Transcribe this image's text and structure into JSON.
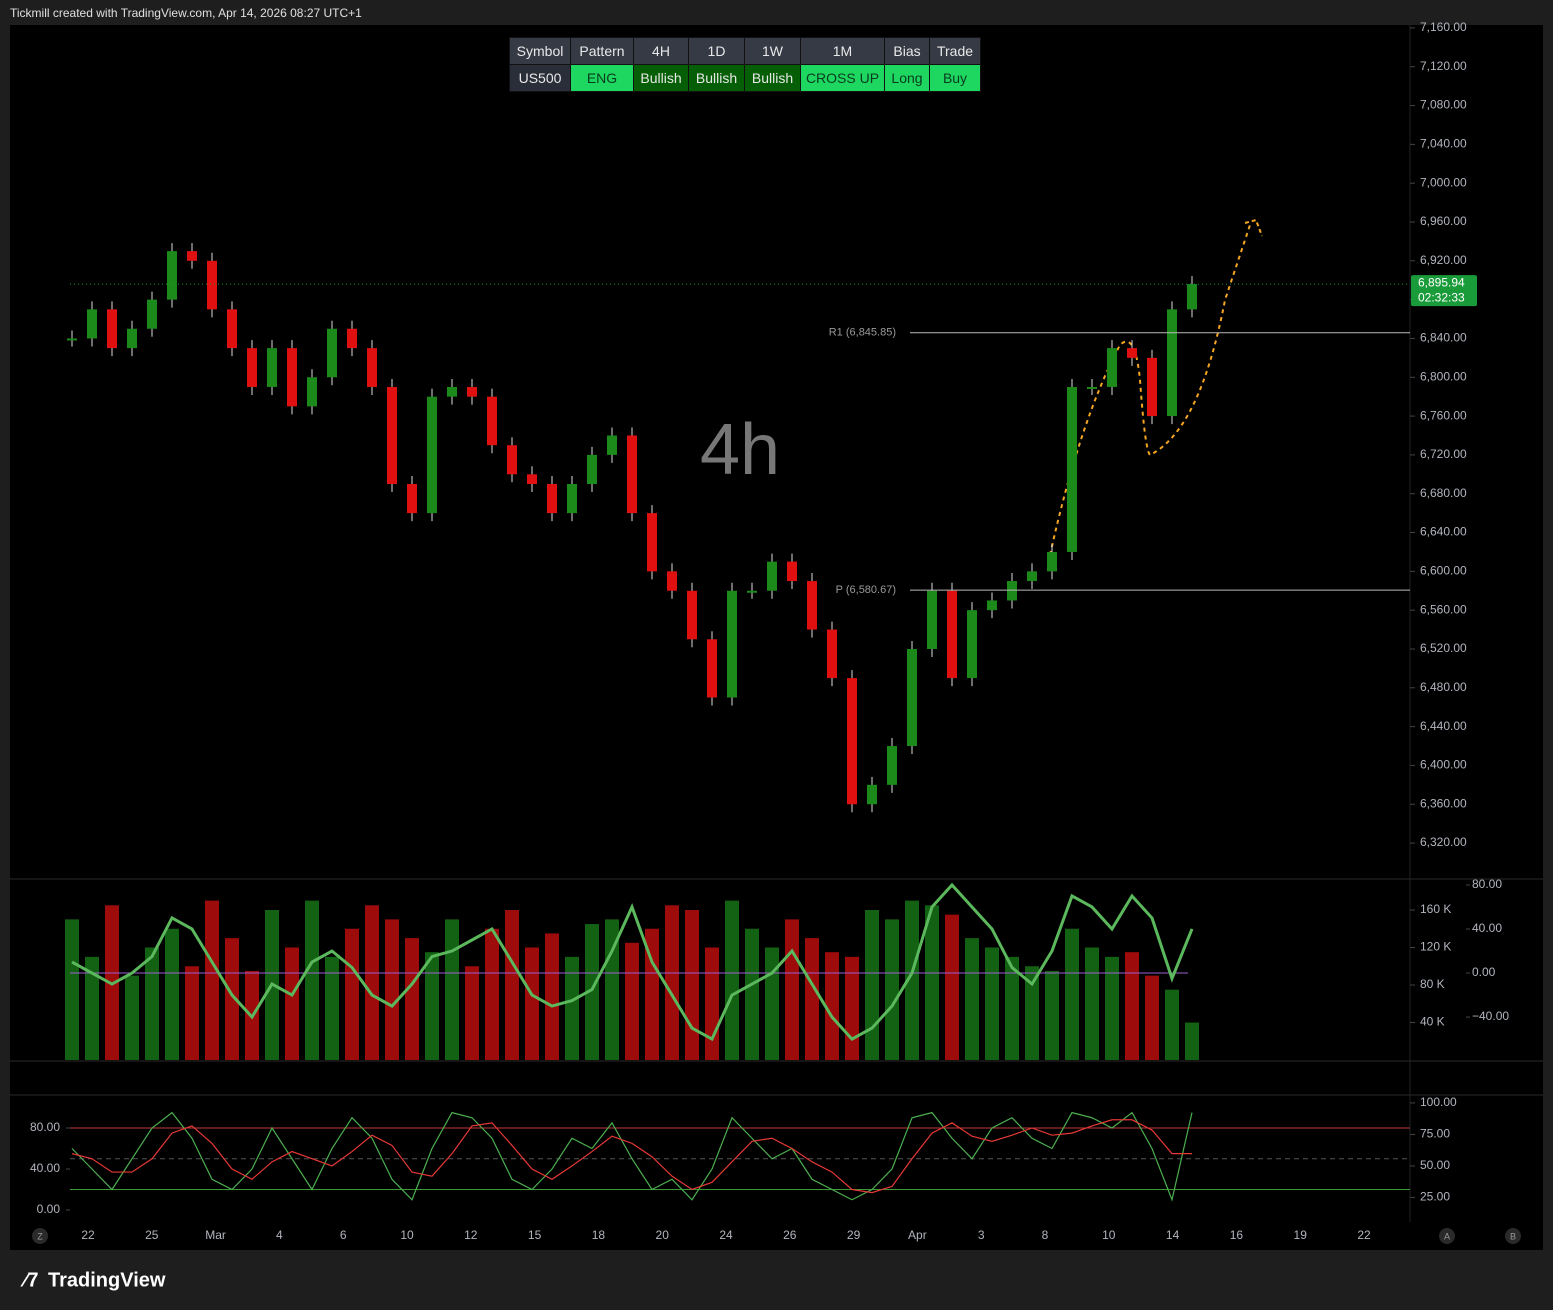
{
  "header": {
    "attribution": "Tickmill created with TradingView.com, Apr 14, 2026 08:27 UTC+1"
  },
  "table": {
    "columns": [
      "Symbol",
      "Pattern",
      "4H",
      "1D",
      "1W",
      "1M",
      "Bias",
      "Trade"
    ],
    "row": [
      "US500",
      "ENG",
      "Bullish",
      "Bullish",
      "Bullish",
      "CROSS UP",
      "Long",
      "Buy"
    ]
  },
  "x_axis": {
    "labels": [
      "22",
      "25",
      "Mar",
      "4",
      "6",
      "10",
      "12",
      "15",
      "18",
      "20",
      "24",
      "26",
      "29",
      "Apr",
      "3",
      "8",
      "10",
      "14",
      "16",
      "19",
      "22"
    ]
  },
  "controls": [
    "Z",
    "A",
    "B"
  ],
  "brand": "TradingView",
  "chart_data": [
    {
      "type": "line",
      "watermark": "4h",
      "values": [
        6840,
        6870,
        6830,
        6850,
        6880,
        6930,
        6920,
        6870,
        6830,
        6790,
        6830,
        6770,
        6800,
        6850,
        6830,
        6790,
        6690,
        6660,
        6780,
        6790,
        6780,
        6730,
        6700,
        6690,
        6660,
        6690,
        6720,
        6740,
        6660,
        6600,
        6580,
        6530,
        6470,
        6580,
        6580,
        6610,
        6590,
        6540,
        6490,
        6360,
        6380,
        6420,
        6520,
        6580,
        6490,
        6560,
        6570,
        6590,
        6600,
        6620,
        6790,
        6790,
        6830,
        6820,
        6760,
        6870,
        6896
      ],
      "color_up": "#1b8a1b",
      "color_down": "#e01010",
      "ylim": [
        6284,
        7163
      ],
      "yticks": [
        {
          "value": 7160,
          "label": "7,160.00"
        },
        {
          "value": 7120,
          "label": "7,120.00"
        },
        {
          "value": 7080,
          "label": "7,080.00"
        },
        {
          "value": 7040,
          "label": "7,040.00"
        },
        {
          "value": 7000,
          "label": "7,000.00"
        },
        {
          "value": 6960,
          "label": "6,960.00"
        },
        {
          "value": 6920,
          "label": "6,920.00"
        },
        {
          "value": 6880,
          "label": "6,880.00"
        },
        {
          "value": 6840,
          "label": "6,840.00"
        },
        {
          "value": 6800,
          "label": "6,800.00"
        },
        {
          "value": 6760,
          "label": "6,760.00"
        },
        {
          "value": 6720,
          "label": "6,720.00"
        },
        {
          "value": 6680,
          "label": "6,680.00"
        },
        {
          "value": 6640,
          "label": "6,640.00"
        },
        {
          "value": 6600,
          "label": "6,600.00"
        },
        {
          "value": 6560,
          "label": "6,560.00"
        },
        {
          "value": 6520,
          "label": "6,520.00"
        },
        {
          "value": 6480,
          "label": "6,480.00"
        },
        {
          "value": 6440,
          "label": "6,440.00"
        },
        {
          "value": 6400,
          "label": "6,400.00"
        },
        {
          "value": 6360,
          "label": "6,360.00"
        },
        {
          "value": 6320,
          "label": "6,320.00"
        }
      ],
      "levels": [
        {
          "label": "R1 (6,845.85)",
          "value": 6845.85
        },
        {
          "label": "P (6,580.67)",
          "value": 6580.67
        }
      ],
      "last_price": {
        "value": 6895.94,
        "label": "6,895.94",
        "countdown": "02:32:33",
        "color": "#1a9b3a"
      }
    },
    {
      "type": "bar",
      "values": [
        150000,
        110000,
        165000,
        90000,
        120000,
        140000,
        100000,
        170000,
        130000,
        95000,
        160000,
        120000,
        170000,
        110000,
        140000,
        165000,
        150000,
        130000,
        115000,
        150000,
        100000,
        140000,
        160000,
        120000,
        135000,
        110000,
        145000,
        150000,
        125000,
        140000,
        165000,
        160000,
        120000,
        170000,
        140000,
        120000,
        150000,
        130000,
        115000,
        110000,
        160000,
        150000,
        170000,
        165000,
        155000,
        130000,
        120000,
        110000,
        100000,
        95000,
        140000,
        120000,
        110000,
        115000,
        90000,
        75000,
        40000
      ],
      "ylim": [
        0,
        192000
      ],
      "yticks": [
        {
          "value": 160000,
          "label": "160 K"
        },
        {
          "value": 120000,
          "label": "120 K"
        },
        {
          "value": 80000,
          "label": "80 K"
        },
        {
          "value": 40000,
          "label": "40 K"
        }
      ],
      "y2lim": [
        -79,
        84.5
      ],
      "y2ticks": [
        {
          "value": 80,
          "label": "80.00"
        },
        {
          "value": 40,
          "label": "40.00"
        },
        {
          "value": 0,
          "label": "0.00"
        },
        {
          "value": -40,
          "label": "−40.00"
        }
      ],
      "line": {
        "axis": "y2",
        "color": "#5cb85c",
        "color_down": "#f06060",
        "values": [
          10,
          0,
          -10,
          0,
          15,
          50,
          40,
          10,
          -20,
          -40,
          -10,
          -20,
          10,
          20,
          5,
          -20,
          -30,
          -10,
          15,
          20,
          30,
          40,
          10,
          -20,
          -30,
          -25,
          -15,
          20,
          60,
          10,
          -20,
          -50,
          -60,
          -20,
          -10,
          0,
          20,
          -10,
          -40,
          -60,
          -50,
          -30,
          0,
          60,
          80,
          60,
          40,
          5,
          -10,
          20,
          70,
          60,
          40,
          70,
          50,
          -5,
          40
        ]
      },
      "zero_line_color": "#9c5fd0"
    },
    {
      "type": "line",
      "series": [
        {
          "color": "#4caf50",
          "values": [
            60,
            40,
            20,
            50,
            80,
            95,
            70,
            30,
            20,
            40,
            80,
            50,
            20,
            60,
            90,
            70,
            30,
            10,
            60,
            95,
            90,
            70,
            30,
            20,
            40,
            70,
            60,
            85,
            50,
            20,
            30,
            10,
            40,
            90,
            70,
            50,
            60,
            30,
            20,
            10,
            20,
            40,
            90,
            95,
            70,
            50,
            80,
            90,
            70,
            60,
            95,
            90,
            80,
            95,
            60,
            10,
            95
          ]
        },
        {
          "color": "#e53935",
          "values": [
            55,
            50,
            37,
            37,
            50,
            75,
            82,
            65,
            40,
            30,
            47,
            57,
            50,
            43,
            57,
            73,
            63,
            37,
            33,
            55,
            82,
            85,
            63,
            40,
            30,
            43,
            57,
            72,
            65,
            52,
            33,
            20,
            27,
            47,
            67,
            70,
            60,
            47,
            37,
            20,
            17,
            23,
            50,
            75,
            85,
            72,
            67,
            73,
            80,
            73,
            75,
            82,
            88,
            88,
            78,
            55,
            55
          ]
        }
      ],
      "ylim": [
        -11.7,
        111.2
      ],
      "yticks": [
        {
          "value": 80,
          "label": "80.00"
        },
        {
          "value": 40,
          "label": "40.00"
        },
        {
          "value": 0,
          "label": "0.00"
        }
      ],
      "y2lim": [
        5.5,
        105.5
      ],
      "y2ticks": [
        {
          "value": 100,
          "label": "100.00"
        },
        {
          "value": 75,
          "label": "75.00"
        },
        {
          "value": 50,
          "label": "50.00"
        },
        {
          "value": 25,
          "label": "25.00"
        }
      ],
      "bands": [
        {
          "value": 80,
          "color": "#c03a3a"
        },
        {
          "value": 20,
          "color": "#3a9a3a"
        }
      ],
      "midline": 50
    }
  ]
}
